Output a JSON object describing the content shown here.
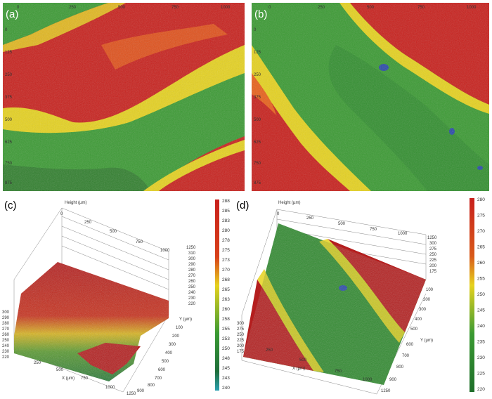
{
  "panels": {
    "a": {
      "label": "(a)",
      "top_ticks": [
        "0",
        "250",
        "500",
        "750",
        "1000"
      ],
      "left_ticks": [
        "0",
        "125",
        "250",
        "375",
        "500",
        "625",
        "750",
        "875"
      ],
      "left_axis_label": "Y"
    },
    "b": {
      "label": "(b)",
      "top_ticks": [
        "0",
        "250",
        "500",
        "750",
        "1000"
      ],
      "left_ticks": [
        "0",
        "125",
        "250",
        "375",
        "500",
        "625",
        "750",
        "875"
      ],
      "left_axis_label": "Y"
    },
    "c": {
      "label": "(c)",
      "height_label": "Height (µm)",
      "back_ticks": [
        "0",
        "250",
        "500",
        "750",
        "1000"
      ],
      "height_ticks": [
        "310",
        "300",
        "290",
        "280",
        "270",
        "260",
        "250",
        "240",
        "230",
        "220"
      ],
      "height_top": "1250",
      "y_label": "Y (µm)",
      "y_ticks": [
        "100",
        "200",
        "300",
        "400",
        "500",
        "600",
        "700",
        "800",
        "900",
        "1250"
      ],
      "x_label": "X (µm)",
      "x_ticks": [
        "250",
        "500",
        "750",
        "1000"
      ],
      "left_ticks": [
        "300",
        "290",
        "280",
        "270",
        "260",
        "250",
        "240",
        "230",
        "220"
      ],
      "colorbar_ticks": [
        "288",
        "285",
        "283",
        "280",
        "278",
        "275",
        "273",
        "270",
        "268",
        "265",
        "263",
        "260",
        "258",
        "255",
        "253",
        "250",
        "248",
        "245",
        "243",
        "240"
      ]
    },
    "d": {
      "label": "(d)",
      "height_label": "Height (µm)",
      "back_ticks": [
        "0",
        "250",
        "500",
        "750",
        "1000"
      ],
      "height_ticks": [
        "300",
        "275",
        "250",
        "225",
        "200",
        "175"
      ],
      "height_top": "1250",
      "y_label": "Y (µm)",
      "y_ticks": [
        "100",
        "200",
        "300",
        "400",
        "500",
        "600",
        "700",
        "800",
        "900",
        "1250"
      ],
      "x_label": "X (µm)",
      "x_ticks": [
        "250",
        "500",
        "750",
        "1000"
      ],
      "left_ticks": [
        "300",
        "275",
        "250",
        "225",
        "200",
        "175"
      ],
      "colorbar_ticks": [
        "280",
        "275",
        "270",
        "265",
        "260",
        "255",
        "250",
        "245",
        "240",
        "235",
        "230",
        "225",
        "220"
      ]
    }
  },
  "colors": {
    "red": "#c8201c",
    "orange": "#e8601a",
    "yellow": "#e6d21e",
    "green": "#3a9a32",
    "dark_green": "#2a6e2a",
    "blue": "#2a4aa8"
  }
}
